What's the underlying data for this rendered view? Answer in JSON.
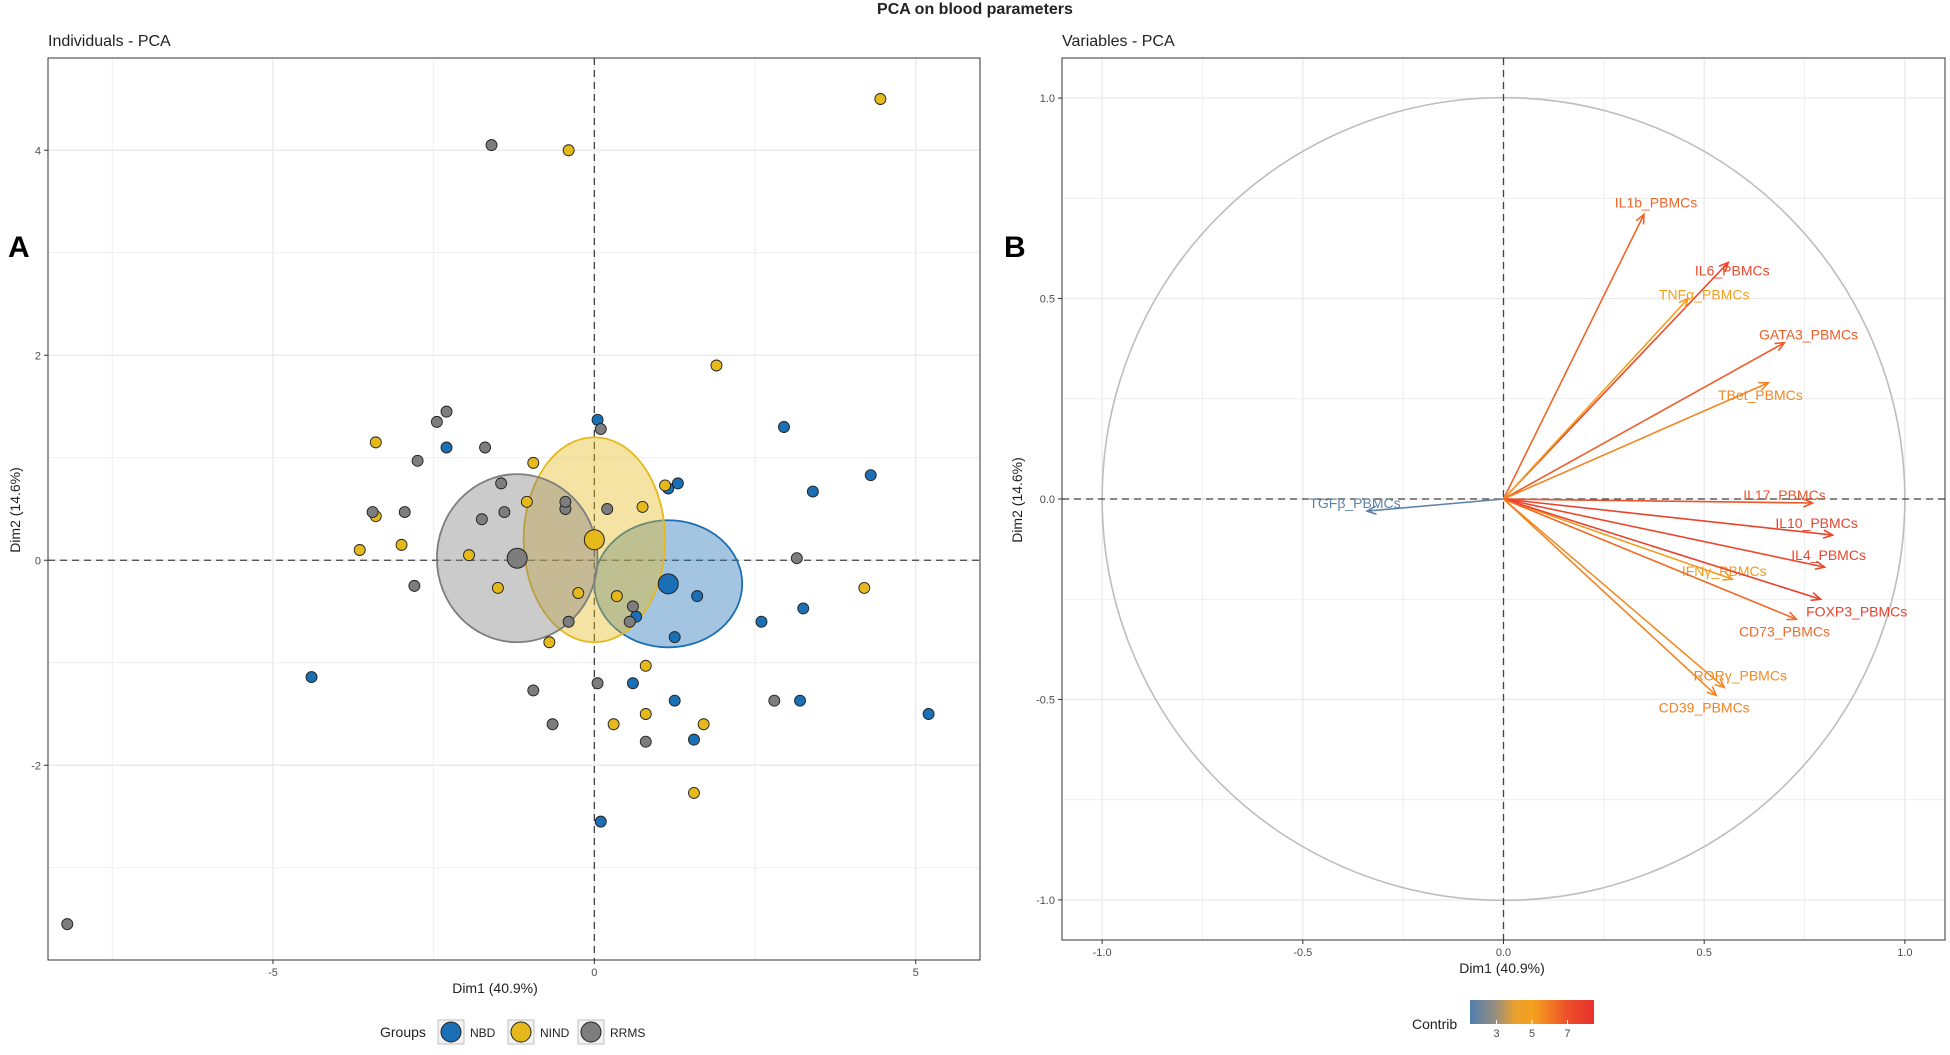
{
  "figure_title": "PCA on blood parameters",
  "colors": {
    "NBD": "#1a6fb5",
    "NIND": "#e5b81c",
    "RRMS": "#7d7d7d",
    "grid": "#ebebeb",
    "axis_line": "#444444",
    "contrib_low": "#4f7fb0",
    "contrib_high": "#e8312f"
  },
  "chart_data": [
    {
      "type": "scatter",
      "panel_letter": "A",
      "title": "Individuals - PCA",
      "xlabel": "Dim1 (40.9%)",
      "ylabel": "Dim2 (14.6%)",
      "xlim": [
        -8.5,
        6
      ],
      "ylim": [
        -3.9,
        4.9
      ],
      "xticks": [
        -5,
        0,
        5
      ],
      "yticks": [
        -2,
        0,
        2,
        4
      ],
      "grid": true,
      "legend": {
        "title": "Groups",
        "position": "bottom",
        "entries": [
          "NBD",
          "NIND",
          "RRMS"
        ]
      },
      "series": [
        {
          "name": "NBD",
          "centroid": [
            1.15,
            -0.23
          ],
          "ellipse_radii": [
            1.15,
            0.62
          ],
          "points": [
            [
              -4.4,
              -1.14
            ],
            [
              -2.3,
              1.1
            ],
            [
              0.05,
              1.37
            ],
            [
              0.65,
              -0.55
            ],
            [
              1.15,
              0.7
            ],
            [
              1.3,
              0.75
            ],
            [
              1.6,
              -0.35
            ],
            [
              2.95,
              1.3
            ],
            [
              3.4,
              0.67
            ],
            [
              4.3,
              0.83
            ],
            [
              3.25,
              -0.47
            ],
            [
              2.6,
              -0.6
            ],
            [
              1.25,
              -0.75
            ],
            [
              0.6,
              -1.2
            ],
            [
              1.25,
              -1.37
            ],
            [
              3.2,
              -1.37
            ],
            [
              1.55,
              -1.75
            ],
            [
              0.1,
              -2.55
            ],
            [
              5.2,
              -1.5
            ]
          ]
        },
        {
          "name": "NIND",
          "centroid": [
            0.0,
            0.2
          ],
          "ellipse_radii": [
            1.1,
            1.0
          ],
          "points": [
            [
              -3.4,
              1.15
            ],
            [
              -3.4,
              0.43
            ],
            [
              -3.65,
              0.1
            ],
            [
              -3.0,
              0.15
            ],
            [
              -1.5,
              -0.27
            ],
            [
              -1.95,
              0.05
            ],
            [
              -0.95,
              0.95
            ],
            [
              -1.05,
              0.57
            ],
            [
              -0.7,
              -0.8
            ],
            [
              0.75,
              0.52
            ],
            [
              1.1,
              0.73
            ],
            [
              -0.4,
              4.0
            ],
            [
              -0.25,
              -0.32
            ],
            [
              0.35,
              -0.35
            ],
            [
              0.8,
              -1.03
            ],
            [
              0.8,
              -1.5
            ],
            [
              0.3,
              -1.6
            ],
            [
              1.7,
              -1.6
            ],
            [
              1.55,
              -2.27
            ],
            [
              1.9,
              1.9
            ],
            [
              4.2,
              -0.27
            ],
            [
              4.45,
              4.5
            ]
          ]
        },
        {
          "name": "RRMS",
          "centroid": [
            -1.2,
            0.02
          ],
          "ellipse_radii": [
            1.25,
            0.82
          ],
          "points": [
            [
              -1.6,
              4.05
            ],
            [
              -2.45,
              1.35
            ],
            [
              -2.3,
              1.45
            ],
            [
              -1.7,
              1.1
            ],
            [
              -2.75,
              0.97
            ],
            [
              -1.45,
              0.75
            ],
            [
              -3.45,
              0.47
            ],
            [
              -2.95,
              0.47
            ],
            [
              -1.4,
              0.47
            ],
            [
              -1.75,
              0.4
            ],
            [
              -0.45,
              0.5
            ],
            [
              -0.45,
              0.57
            ],
            [
              0.2,
              0.5
            ],
            [
              0.1,
              1.28
            ],
            [
              -2.8,
              -0.25
            ],
            [
              -0.4,
              -0.6
            ],
            [
              0.6,
              -0.45
            ],
            [
              0.55,
              -0.6
            ],
            [
              -0.95,
              -1.27
            ],
            [
              -0.65,
              -1.6
            ],
            [
              0.05,
              -1.2
            ],
            [
              0.8,
              -1.77
            ],
            [
              2.8,
              -1.37
            ],
            [
              3.15,
              0.02
            ],
            [
              -8.2,
              -3.55
            ]
          ]
        }
      ]
    },
    {
      "type": "variable-loadings",
      "panel_letter": "B",
      "title": "Variables - PCA",
      "xlabel": "Dim1 (40.9%)",
      "ylabel": "Dim2 (14.6%)",
      "xlim": [
        -1.1,
        1.1
      ],
      "ylim": [
        -1.1,
        1.1
      ],
      "xticks": [
        -1.0,
        -0.5,
        0.0,
        0.5,
        1.0
      ],
      "yticks": [
        -1.0,
        -0.5,
        0.0,
        0.5,
        1.0
      ],
      "grid": true,
      "legend": {
        "title": "Contrib",
        "position": "bottom",
        "range": [
          1.5,
          8.5
        ],
        "ticks": [
          3,
          5,
          7
        ]
      },
      "vectors": [
        {
          "name": "IL1b_PBMCs",
          "x": 0.35,
          "y": 0.71,
          "contrib": 6.5,
          "label_x": 0.38,
          "label_y": 0.74
        },
        {
          "name": "IL6_PBMCs",
          "x": 0.56,
          "y": 0.59,
          "contrib": 7.3,
          "label_x": 0.57,
          "label_y": 0.57
        },
        {
          "name": "TNFα_PBMCs",
          "x": 0.46,
          "y": 0.5,
          "contrib": 5.1,
          "label_x": 0.5,
          "label_y": 0.51
        },
        {
          "name": "GATA3_PBMCs",
          "x": 0.7,
          "y": 0.39,
          "contrib": 6.7,
          "label_x": 0.76,
          "label_y": 0.41
        },
        {
          "name": "TBet_PBMCs",
          "x": 0.66,
          "y": 0.29,
          "contrib": 5.7,
          "label_x": 0.64,
          "label_y": 0.26
        },
        {
          "name": "IL17_PBMCs",
          "x": 0.77,
          "y": -0.01,
          "contrib": 6.9,
          "label_x": 0.7,
          "label_y": 0.01
        },
        {
          "name": "IL10_PBMCs",
          "x": 0.82,
          "y": -0.09,
          "contrib": 7.6,
          "label_x": 0.78,
          "label_y": -0.06
        },
        {
          "name": "IL4_PBMCs",
          "x": 0.8,
          "y": -0.17,
          "contrib": 7.5,
          "label_x": 0.81,
          "label_y": -0.14
        },
        {
          "name": "IFNγ_PBMCs",
          "x": 0.57,
          "y": -0.2,
          "contrib": 5.2,
          "label_x": 0.55,
          "label_y": -0.18
        },
        {
          "name": "FOXP3_PBMCs",
          "x": 0.79,
          "y": -0.25,
          "contrib": 7.7,
          "label_x": 0.88,
          "label_y": -0.28
        },
        {
          "name": "CD73_PBMCs",
          "x": 0.73,
          "y": -0.3,
          "contrib": 6.4,
          "label_x": 0.7,
          "label_y": -0.33
        },
        {
          "name": "RORγ_PBMCs",
          "x": 0.55,
          "y": -0.47,
          "contrib": 5.6,
          "label_x": 0.59,
          "label_y": -0.44
        },
        {
          "name": "CD39_PBMCs",
          "x": 0.53,
          "y": -0.49,
          "contrib": 5.8,
          "label_x": 0.5,
          "label_y": -0.52
        },
        {
          "name": "TGFβ_PBMCs",
          "x": -0.34,
          "y": -0.03,
          "contrib": 1.8,
          "label_x": -0.37,
          "label_y": -0.01
        }
      ]
    }
  ]
}
